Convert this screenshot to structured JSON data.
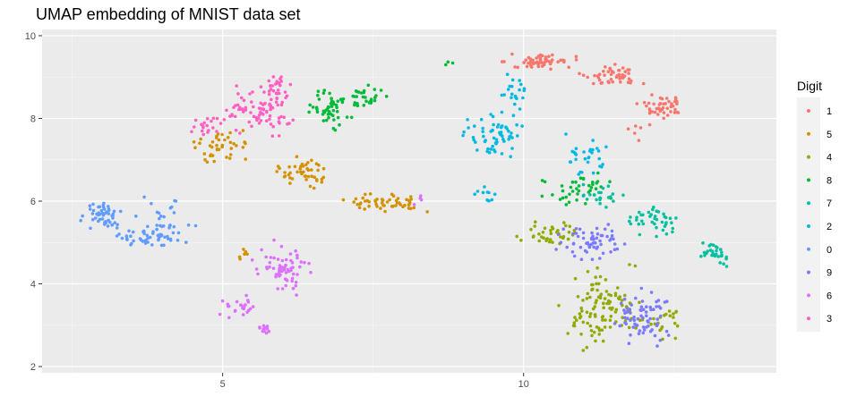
{
  "chart_data": {
    "type": "scatter",
    "title": "UMAP embedding of MNIST data set",
    "xlabel": "",
    "ylabel": "",
    "xlim": [
      2.0,
      14.2
    ],
    "ylim": [
      1.85,
      10.15
    ],
    "x_ticks": [
      5,
      10
    ],
    "y_ticks": [
      2,
      4,
      6,
      8,
      10
    ],
    "grid": true,
    "legend_title": "Digit",
    "legend_position": "right",
    "series": [
      {
        "name": "1",
        "color": "#F8766D",
        "clusters": [
          {
            "x": [
              9.4,
              11.2
            ],
            "y": [
              9.15,
              9.6
            ],
            "n": 55,
            "seed": 11
          },
          {
            "x": [
              10.8,
              12.2
            ],
            "y": [
              8.7,
              9.35
            ],
            "n": 50,
            "seed": 12
          },
          {
            "x": [
              11.8,
              12.8
            ],
            "y": [
              7.9,
              8.7
            ],
            "n": 45,
            "seed": 13
          },
          {
            "x": [
              11.4,
              12.6
            ],
            "y": [
              7.4,
              8.0
            ],
            "n": 6,
            "seed": 14
          }
        ]
      },
      {
        "name": "5",
        "color": "#D39200",
        "clusters": [
          {
            "x": [
              4.3,
              5.7
            ],
            "y": [
              6.8,
              7.8
            ],
            "n": 40,
            "seed": 21
          },
          {
            "x": [
              5.7,
              7.0
            ],
            "y": [
              6.2,
              7.2
            ],
            "n": 45,
            "seed": 22
          },
          {
            "x": [
              6.8,
              8.6
            ],
            "y": [
              5.65,
              6.3
            ],
            "n": 55,
            "seed": 23
          },
          {
            "x": [
              5.0,
              5.6
            ],
            "y": [
              4.5,
              5.0
            ],
            "n": 6,
            "seed": 24
          }
        ]
      },
      {
        "name": "4",
        "color": "#93AA00",
        "clusters": [
          {
            "x": [
              9.8,
              11.2
            ],
            "y": [
              4.8,
              5.6
            ],
            "n": 40,
            "seed": 31
          },
          {
            "x": [
              10.5,
              12.2
            ],
            "y": [
              2.2,
              4.6
            ],
            "n": 110,
            "seed": 32
          },
          {
            "x": [
              12.0,
              12.8
            ],
            "y": [
              2.6,
              3.6
            ],
            "n": 20,
            "seed": 33
          }
        ]
      },
      {
        "name": "8",
        "color": "#00BA38",
        "clusters": [
          {
            "x": [
              6.2,
              7.5
            ],
            "y": [
              7.6,
              8.9
            ],
            "n": 55,
            "seed": 41
          },
          {
            "x": [
              7.0,
              7.8
            ],
            "y": [
              8.2,
              8.9
            ],
            "n": 25,
            "seed": 42
          },
          {
            "x": [
              10.2,
              11.8
            ],
            "y": [
              5.7,
              6.8
            ],
            "n": 40,
            "seed": 43
          },
          {
            "x": [
              8.6,
              8.9
            ],
            "y": [
              9.2,
              9.4
            ],
            "n": 3,
            "seed": 44
          }
        ]
      },
      {
        "name": "7",
        "color": "#00C19F",
        "clusters": [
          {
            "x": [
              11.5,
              12.8
            ],
            "y": [
              5.0,
              6.0
            ],
            "n": 40,
            "seed": 51
          },
          {
            "x": [
              12.8,
              13.6
            ],
            "y": [
              4.2,
              5.2
            ],
            "n": 30,
            "seed": 52
          },
          {
            "x": [
              10.8,
              11.8
            ],
            "y": [
              5.7,
              6.5
            ],
            "n": 20,
            "seed": 53
          }
        ]
      },
      {
        "name": "2",
        "color": "#00B9E3",
        "clusters": [
          {
            "x": [
              8.8,
              10.3
            ],
            "y": [
              6.9,
              8.3
            ],
            "n": 60,
            "seed": 61
          },
          {
            "x": [
              9.5,
              10.2
            ],
            "y": [
              8.0,
              9.3
            ],
            "n": 20,
            "seed": 62
          },
          {
            "x": [
              10.3,
              11.8
            ],
            "y": [
              6.4,
              7.9
            ],
            "n": 30,
            "seed": 63
          },
          {
            "x": [
              9.1,
              9.7
            ],
            "y": [
              5.9,
              6.5
            ],
            "n": 10,
            "seed": 64
          }
        ]
      },
      {
        "name": "0",
        "color": "#619CFF",
        "clusters": [
          {
            "x": [
              2.6,
              3.5
            ],
            "y": [
              5.2,
              6.1
            ],
            "n": 50,
            "seed": 71
          },
          {
            "x": [
              3.0,
              4.6
            ],
            "y": [
              4.7,
              5.6
            ],
            "n": 55,
            "seed": 72
          },
          {
            "x": [
              3.5,
              4.7
            ],
            "y": [
              5.0,
              6.4
            ],
            "n": 20,
            "seed": 73
          }
        ]
      },
      {
        "name": "9",
        "color": "#7B7BFF",
        "clusters": [
          {
            "x": [
              10.3,
              12.0
            ],
            "y": [
              4.4,
              5.6
            ],
            "n": 60,
            "seed": 81
          },
          {
            "x": [
              11.3,
              12.7
            ],
            "y": [
              2.3,
              4.2
            ],
            "n": 70,
            "seed": 82
          }
        ]
      },
      {
        "name": "6",
        "color": "#DB72FB",
        "clusters": [
          {
            "x": [
              5.4,
              6.6
            ],
            "y": [
              3.6,
              5.2
            ],
            "n": 65,
            "seed": 91
          },
          {
            "x": [
              4.9,
              5.7
            ],
            "y": [
              3.1,
              3.8
            ],
            "n": 25,
            "seed": 92
          },
          {
            "x": [
              5.5,
              5.9
            ],
            "y": [
              2.75,
              3.05
            ],
            "n": 12,
            "seed": 93
          },
          {
            "x": [
              8.1,
              8.4
            ],
            "y": [
              5.8,
              6.2
            ],
            "n": 4,
            "seed": 94
          }
        ]
      },
      {
        "name": "3",
        "color": "#FF61C3",
        "clusters": [
          {
            "x": [
              4.9,
              6.4
            ],
            "y": [
              7.4,
              9.0
            ],
            "n": 85,
            "seed": 101
          },
          {
            "x": [
              4.4,
              5.2
            ],
            "y": [
              7.5,
              8.1
            ],
            "n": 20,
            "seed": 102
          },
          {
            "x": [
              5.6,
              6.2
            ],
            "y": [
              8.5,
              9.1
            ],
            "n": 20,
            "seed": 103
          }
        ]
      }
    ]
  }
}
